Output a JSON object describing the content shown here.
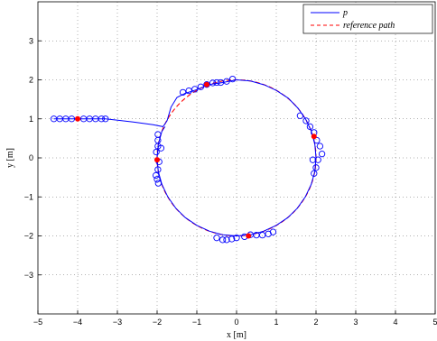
{
  "chart_data": {
    "type": "line",
    "xlabel": "x [m]",
    "ylabel": "y [m]",
    "xlim": [
      -5,
      5
    ],
    "ylim": [
      -4,
      4
    ],
    "xticks": [
      "−5",
      "−4",
      "−3",
      "−2",
      "−1",
      "0",
      "1",
      "2",
      "3",
      "4",
      "5"
    ],
    "yticks": [
      "−3",
      "−2",
      "−1",
      "0",
      "1",
      "2",
      "3"
    ],
    "grid": true,
    "legend_position": "top-right",
    "series": [
      {
        "name": "p",
        "color": "#0000ff",
        "style": "solid",
        "points": [
          [
            -4.6,
            1.0
          ],
          [
            -4.0,
            1.0
          ],
          [
            -3.3,
            1.0
          ],
          [
            -2.6,
            0.92
          ],
          [
            -2.1,
            0.85
          ],
          [
            -1.85,
            0.8
          ],
          [
            -1.75,
            0.95
          ],
          [
            -1.65,
            1.3
          ],
          [
            -1.5,
            1.55
          ],
          [
            -1.3,
            1.65
          ],
          [
            -1.0,
            1.75
          ],
          [
            -0.7,
            1.88
          ],
          [
            -0.35,
            1.93
          ],
          [
            0.0,
            2.0
          ],
          [
            0.35,
            1.97
          ],
          [
            0.7,
            1.87
          ],
          [
            1.0,
            1.73
          ],
          [
            1.3,
            1.53
          ],
          [
            1.55,
            1.27
          ],
          [
            1.75,
            0.97
          ],
          [
            1.88,
            0.69
          ],
          [
            1.97,
            0.35
          ],
          [
            2.0,
            0.0
          ],
          [
            1.97,
            -0.35
          ],
          [
            1.88,
            -0.68
          ],
          [
            1.73,
            -1.0
          ],
          [
            1.53,
            -1.29
          ],
          [
            1.29,
            -1.53
          ],
          [
            1.0,
            -1.73
          ],
          [
            0.68,
            -1.88
          ],
          [
            0.35,
            -1.97
          ],
          [
            0.0,
            -2.0
          ],
          [
            -0.35,
            -1.97
          ],
          [
            -0.68,
            -1.88
          ],
          [
            -1.0,
            -1.73
          ],
          [
            -1.29,
            -1.53
          ],
          [
            -1.53,
            -1.29
          ],
          [
            -1.73,
            -1.0
          ],
          [
            -1.88,
            -0.68
          ],
          [
            -1.97,
            -0.35
          ],
          [
            -2.0,
            0.0
          ],
          [
            -1.97,
            0.35
          ],
          [
            -1.88,
            0.68
          ],
          [
            -1.8,
            0.8
          ]
        ],
        "markers": [
          [
            -4.6,
            1.0
          ],
          [
            -4.45,
            1.0
          ],
          [
            -4.3,
            1.0
          ],
          [
            -4.15,
            1.0
          ],
          [
            -3.85,
            1.0
          ],
          [
            -3.7,
            1.0
          ],
          [
            -3.55,
            1.0
          ],
          [
            -3.4,
            1.0
          ],
          [
            -3.3,
            1.0
          ],
          [
            -1.35,
            1.68
          ],
          [
            -1.2,
            1.72
          ],
          [
            -1.05,
            1.76
          ],
          [
            -0.9,
            1.82
          ],
          [
            -0.75,
            1.88
          ],
          [
            -0.6,
            1.92
          ],
          [
            -0.5,
            1.93
          ],
          [
            -0.4,
            1.93
          ],
          [
            -0.25,
            1.96
          ],
          [
            -0.1,
            2.02
          ],
          [
            -1.98,
            0.45
          ],
          [
            -1.98,
            0.3
          ],
          [
            -2.02,
            0.15
          ],
          [
            -1.95,
            -0.1
          ],
          [
            -1.98,
            -0.3
          ],
          [
            -2.03,
            -0.45
          ],
          [
            -2.0,
            -0.55
          ],
          [
            -1.97,
            -0.65
          ],
          [
            -1.98,
            0.6
          ],
          [
            -1.9,
            0.25
          ],
          [
            1.6,
            1.08
          ],
          [
            1.75,
            0.95
          ],
          [
            1.85,
            0.8
          ],
          [
            1.95,
            0.65
          ],
          [
            2.02,
            0.45
          ],
          [
            2.1,
            0.3
          ],
          [
            2.15,
            0.1
          ],
          [
            2.05,
            -0.05
          ],
          [
            2.0,
            -0.25
          ],
          [
            1.95,
            -0.4
          ],
          [
            1.92,
            -0.05
          ],
          [
            -0.35,
            -2.1
          ],
          [
            -0.25,
            -2.1
          ],
          [
            -0.12,
            -2.08
          ],
          [
            0.0,
            -2.05
          ],
          [
            0.2,
            -2.02
          ],
          [
            0.35,
            -1.97
          ],
          [
            0.5,
            -1.98
          ],
          [
            0.65,
            -1.98
          ],
          [
            0.8,
            -1.95
          ],
          [
            0.92,
            -1.9
          ],
          [
            -0.5,
            -2.05
          ]
        ],
        "highlight_points": [
          [
            -4.0,
            1.0
          ],
          [
            -0.75,
            1.88
          ],
          [
            -2.0,
            -0.05
          ],
          [
            1.95,
            0.55
          ],
          [
            0.3,
            -2.0
          ]
        ]
      },
      {
        "name": "reference path",
        "color": "#ff0000",
        "style": "dashed",
        "shape": "circle",
        "center": [
          0,
          0
        ],
        "radius": 2
      }
    ],
    "legend": [
      {
        "label": "p",
        "color": "#0000ff",
        "style": "solid"
      },
      {
        "label": "reference path",
        "color": "#ff0000",
        "style": "dashed"
      }
    ]
  }
}
